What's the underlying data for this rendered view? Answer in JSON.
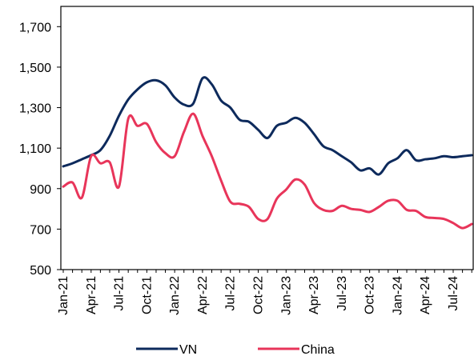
{
  "chart_data": {
    "type": "line",
    "title": "",
    "xlabel": "",
    "ylabel": "",
    "ylim": [
      500,
      1800
    ],
    "yticks": [
      500,
      700,
      900,
      1100,
      1300,
      1500,
      1700
    ],
    "ytick_labels": [
      "500",
      "700",
      "900",
      "1,100",
      "1,300",
      "1,500",
      "1,700"
    ],
    "xtick_labels": [
      "Jan-21",
      "Apr-21",
      "Jul-21",
      "Oct-21",
      "Jan-22",
      "Apr-22",
      "Jul-22",
      "Oct-22",
      "Jan-23",
      "Apr-23",
      "Jul-23",
      "Oct-23",
      "Jan-24",
      "Apr-24",
      "Jul-24"
    ],
    "legend_position": "bottom",
    "grid": false,
    "x": [
      "Jan-21",
      "Feb-21",
      "Mar-21",
      "Apr-21",
      "May-21",
      "Jun-21",
      "Jul-21",
      "Aug-21",
      "Sep-21",
      "Oct-21",
      "Nov-21",
      "Dec-21",
      "Jan-22",
      "Feb-22",
      "Mar-22",
      "Apr-22",
      "May-22",
      "Jun-22",
      "Jul-22",
      "Aug-22",
      "Sep-22",
      "Oct-22",
      "Nov-22",
      "Dec-22",
      "Jan-23",
      "Feb-23",
      "Mar-23",
      "Apr-23",
      "May-23",
      "Jun-23",
      "Jul-23",
      "Aug-23",
      "Sep-23",
      "Oct-23",
      "Nov-23",
      "Dec-23",
      "Jan-24",
      "Feb-24",
      "Mar-24",
      "Apr-24",
      "May-24",
      "Jun-24",
      "Jul-24",
      "Aug-24",
      "Sep-24"
    ],
    "series": [
      {
        "name": "VN",
        "color": "#0d2a5c",
        "values": [
          1010,
          1025,
          1045,
          1065,
          1090,
          1160,
          1260,
          1340,
          1390,
          1425,
          1435,
          1410,
          1350,
          1315,
          1320,
          1445,
          1415,
          1335,
          1300,
          1240,
          1230,
          1190,
          1150,
          1210,
          1225,
          1250,
          1225,
          1170,
          1110,
          1090,
          1060,
          1030,
          990,
          1000,
          970,
          1025,
          1050,
          1090,
          1040,
          1045,
          1050,
          1060,
          1055,
          1060,
          1065
        ]
      },
      {
        "name": "China",
        "color": "#e8355a",
        "values": [
          910,
          930,
          855,
          1060,
          1025,
          1030,
          910,
          1245,
          1210,
          1220,
          1130,
          1075,
          1060,
          1180,
          1270,
          1160,
          1060,
          940,
          835,
          825,
          810,
          750,
          750,
          850,
          895,
          945,
          920,
          830,
          795,
          790,
          815,
          800,
          795,
          785,
          810,
          840,
          840,
          795,
          790,
          760,
          755,
          750,
          730,
          705,
          725
        ]
      }
    ]
  }
}
